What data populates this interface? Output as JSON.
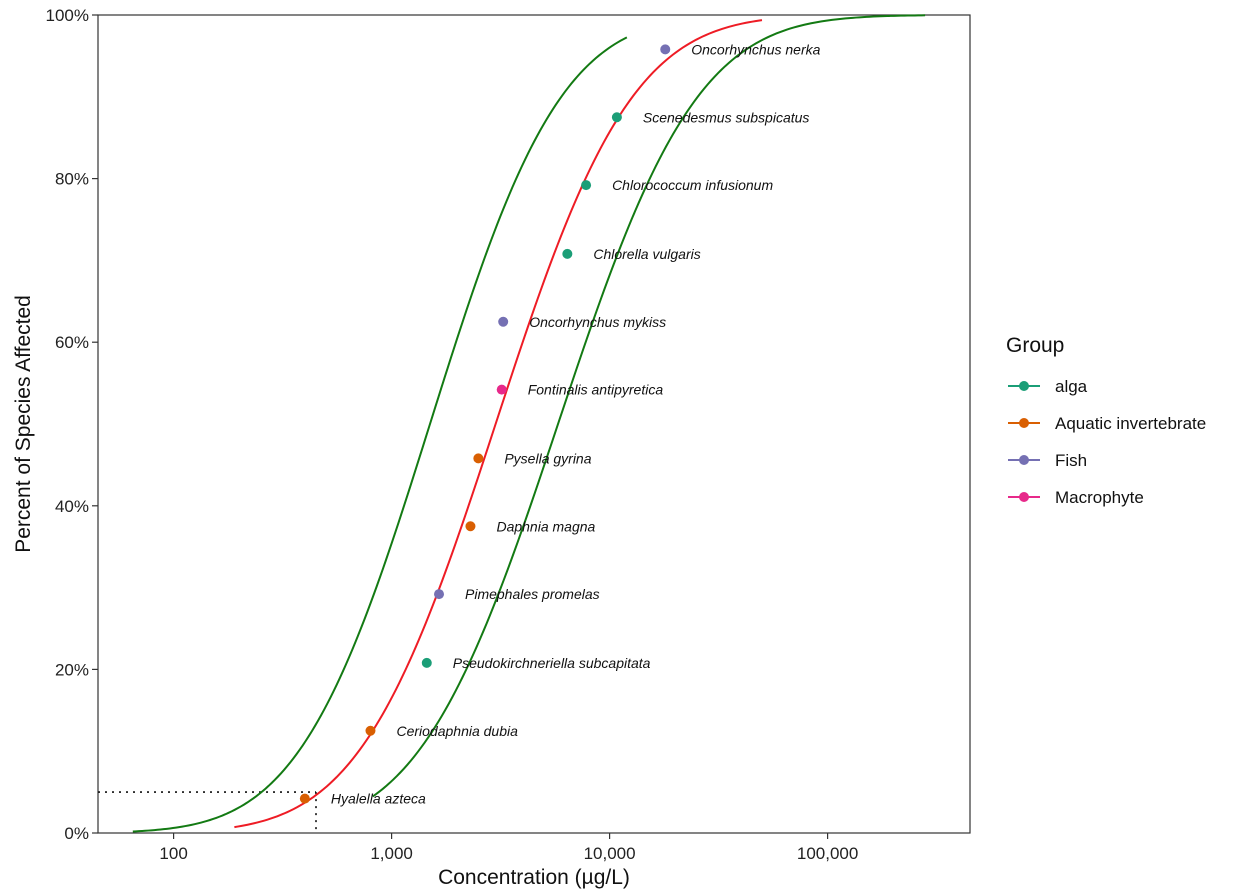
{
  "chart_data": {
    "type": "scatter",
    "xlabel": "Concentration (µg/L)",
    "ylabel": "Percent of Species Affected",
    "xscale": "log",
    "xlim": [
      45,
      450000
    ],
    "ylim": [
      0,
      1
    ],
    "x_ticks": [
      {
        "value": 100,
        "label": "100"
      },
      {
        "value": 1000,
        "label": "1,000"
      },
      {
        "value": 10000,
        "label": "10,000"
      },
      {
        "value": 100000,
        "label": "100,000"
      }
    ],
    "y_ticks": [
      {
        "value": 0,
        "label": "0%"
      },
      {
        "value": 0.2,
        "label": "20%"
      },
      {
        "value": 0.4,
        "label": "40%"
      },
      {
        "value": 0.6,
        "label": "60%"
      },
      {
        "value": 0.8,
        "label": "80%"
      },
      {
        "value": 1.0,
        "label": "100%"
      }
    ],
    "grid": false,
    "legend": {
      "title": "Group",
      "position": "right",
      "entries": [
        {
          "label": "alga",
          "color": "#1b9e77"
        },
        {
          "label": "Aquatic invertebrate",
          "color": "#d95f02"
        },
        {
          "label": "Fish",
          "color": "#7570b3"
        },
        {
          "label": "Macrophyte",
          "color": "#e7298a"
        }
      ]
    },
    "points": [
      {
        "species": "Hyalella azteca",
        "group": "Aquatic invertebrate",
        "x": 400,
        "y": 0.042
      },
      {
        "species": "Ceriodaphnia dubia",
        "group": "Aquatic invertebrate",
        "x": 800,
        "y": 0.125
      },
      {
        "species": "Pseudokirchneriella subcapitata",
        "group": "alga",
        "x": 1450,
        "y": 0.208
      },
      {
        "species": "Pimephales promelas",
        "group": "Fish",
        "x": 1650,
        "y": 0.292
      },
      {
        "species": "Daphnia magna",
        "group": "Aquatic invertebrate",
        "x": 2300,
        "y": 0.375
      },
      {
        "species": "Pysella gyrina",
        "group": "Aquatic invertebrate",
        "x": 2500,
        "y": 0.458
      },
      {
        "species": "Fontinalis antipyretica",
        "group": "Macrophyte",
        "x": 3200,
        "y": 0.542
      },
      {
        "species": "Oncorhynchus mykiss",
        "group": "Fish",
        "x": 3250,
        "y": 0.625
      },
      {
        "species": "Chlorella vulgaris",
        "group": "alga",
        "x": 6400,
        "y": 0.708
      },
      {
        "species": "Chlorococcum infusionum",
        "group": "alga",
        "x": 7800,
        "y": 0.792
      },
      {
        "species": "Scenedesmus subspicatus",
        "group": "alga",
        "x": 10800,
        "y": 0.875
      },
      {
        "species": "Oncorhynchus nerka",
        "group": "Fish",
        "x": 18000,
        "y": 0.958
      }
    ],
    "curves": [
      {
        "role": "fitted",
        "color": "#ee1c25",
        "median": 3000,
        "sigma": 0.49,
        "x_range": [
          190,
          50000
        ]
      },
      {
        "role": "lower-bound",
        "color": "#137a13",
        "median": 1500,
        "sigma": 0.47,
        "x_range": [
          65,
          12000
        ]
      },
      {
        "role": "upper-bound",
        "color": "#137a13",
        "median": 5800,
        "sigma": 0.5,
        "x_range": [
          820,
          280000
        ]
      }
    ],
    "hc5": {
      "x": 450,
      "y": 0.05
    }
  }
}
